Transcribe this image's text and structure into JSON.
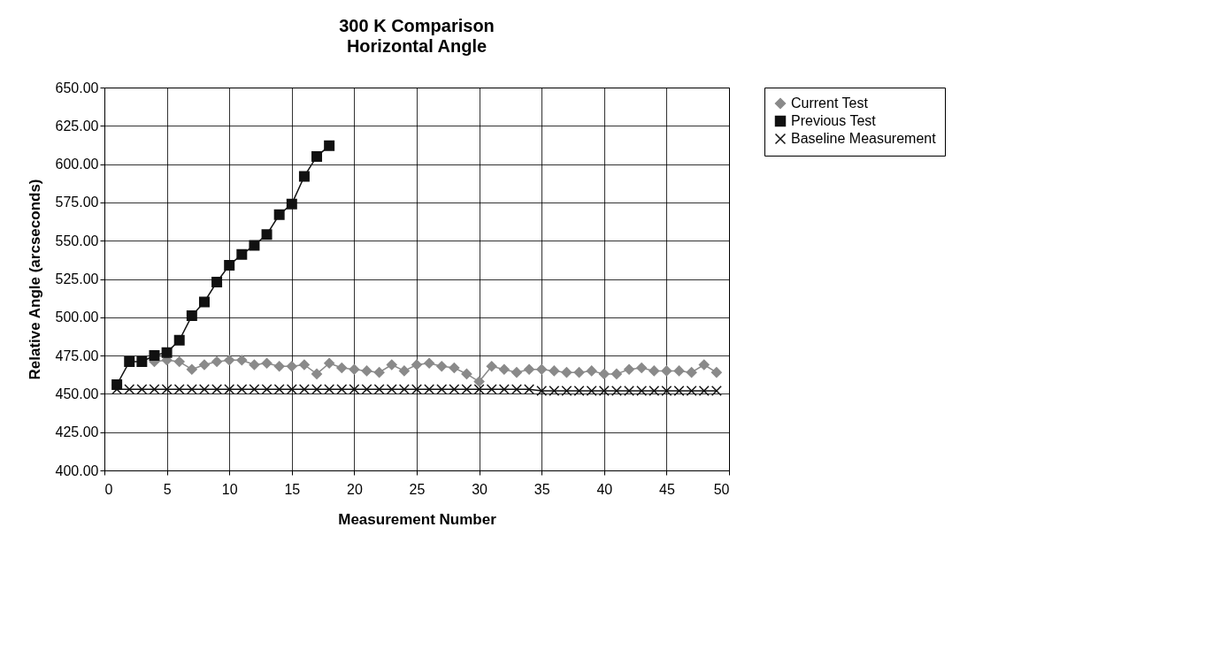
{
  "chart_data": {
    "type": "line",
    "title": "300 K Comparison",
    "subtitle": "Horizontal Angle",
    "xlabel": "Measurement Number",
    "ylabel": "Relative Angle (arcseconds)",
    "xlim": [
      0,
      50
    ],
    "xticks": [
      0,
      5,
      10,
      15,
      20,
      25,
      30,
      35,
      40,
      45,
      50
    ],
    "ylim": [
      400,
      650
    ],
    "yticks": [
      {
        "value": 400,
        "label": "400.00"
      },
      {
        "value": 425,
        "label": "425.00"
      },
      {
        "value": 450,
        "label": "450.00"
      },
      {
        "value": 475,
        "label": "475.00"
      },
      {
        "value": 500,
        "label": "500.00"
      },
      {
        "value": 525,
        "label": "525.00"
      },
      {
        "value": 550,
        "label": "550.00"
      },
      {
        "value": 575,
        "label": "575.00"
      },
      {
        "value": 600,
        "label": "600.00"
      },
      {
        "value": 625,
        "label": "625.00"
      },
      {
        "value": 650,
        "label": "650.00"
      }
    ],
    "grid": true,
    "legend": "right",
    "line_style": "solid",
    "x": [
      1,
      2,
      3,
      4,
      5,
      6,
      7,
      8,
      9,
      10,
      11,
      12,
      13,
      14,
      15,
      16,
      17,
      18,
      19,
      20,
      21,
      22,
      23,
      24,
      25,
      26,
      27,
      28,
      29,
      30,
      31,
      32,
      33,
      34,
      35,
      36,
      37,
      38,
      39,
      40,
      41,
      42,
      43,
      44,
      45,
      46,
      47,
      48,
      49
    ],
    "series": [
      {
        "name": "Current Test",
        "color": "#8a8a8a",
        "marker": "diamond",
        "values": [
          null,
          null,
          null,
          471,
          472,
          471,
          466,
          469,
          471,
          472,
          472,
          469,
          470,
          468,
          468,
          469,
          463,
          470,
          467,
          466,
          465,
          464,
          469,
          465,
          469,
          470,
          468,
          467,
          463,
          458,
          468,
          466,
          464,
          466,
          466,
          465,
          464,
          464,
          465,
          463,
          463,
          466,
          467,
          465,
          465,
          465,
          464,
          469,
          464
        ]
      },
      {
        "name": "Previous Test",
        "color": "#111111",
        "marker": "square",
        "values": [
          456,
          471,
          471,
          475,
          477,
          485,
          501,
          510,
          523,
          534,
          541,
          547,
          554,
          567,
          574,
          592,
          605,
          612,
          null,
          null,
          null,
          null,
          null,
          null,
          null,
          null,
          null,
          null,
          null,
          null,
          null,
          null,
          null,
          null,
          null,
          null,
          null,
          null,
          null,
          null,
          null,
          null,
          null,
          null,
          null,
          null,
          null,
          null,
          null
        ]
      },
      {
        "name": "Baseline Measurement",
        "color": "#111111",
        "marker": "cross",
        "values": [
          453,
          453,
          453,
          453,
          453,
          453,
          453,
          453,
          453,
          453,
          453,
          453,
          453,
          453,
          453,
          453,
          453,
          453,
          453,
          453,
          453,
          453,
          453,
          453,
          453,
          453,
          453,
          453,
          453,
          453,
          453,
          453,
          453,
          453,
          452,
          452,
          452,
          452,
          452,
          452,
          452,
          452,
          452,
          452,
          452,
          452,
          452,
          452,
          452
        ]
      }
    ]
  }
}
